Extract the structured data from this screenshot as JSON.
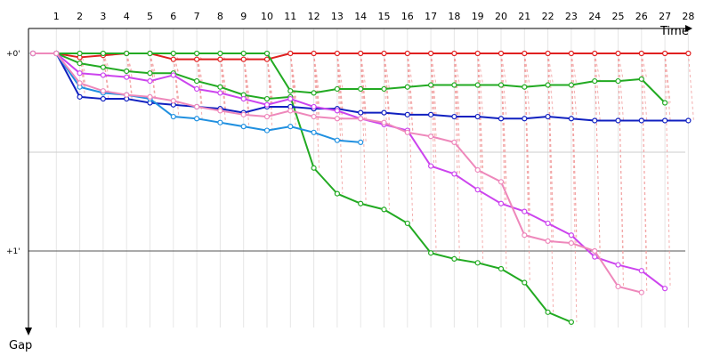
{
  "chart_data": {
    "type": "line",
    "xlabel": "Time",
    "ylabel": "Gap",
    "x_ticks": [
      1,
      2,
      3,
      4,
      5,
      6,
      7,
      8,
      9,
      10,
      11,
      12,
      13,
      14,
      15,
      16,
      17,
      18,
      19,
      20,
      21,
      22,
      23,
      24,
      25,
      26,
      27,
      28
    ],
    "y_ticks": [
      {
        "value": 0,
        "label": "+0'"
      },
      {
        "value": 1,
        "label": "+1'"
      }
    ],
    "ylim": [
      -0.13,
      1.45
    ],
    "xlim": [
      0,
      29.3
    ],
    "grid": true,
    "legend": "none",
    "series": [
      {
        "color": "#e02020",
        "values": [
          0,
          0.0,
          0.02,
          0.01,
          0.0,
          0.0,
          0.03,
          0.03,
          0.03,
          0.03,
          0.03,
          0.0,
          0.0,
          0.0,
          0.0,
          0.0,
          0.0,
          0.0,
          0.0,
          0.0,
          0.0,
          0.0,
          0.0,
          0.0,
          0.0,
          0.0,
          0.0,
          0.0,
          0.0
        ]
      },
      {
        "color": "#22aa22",
        "values": [
          0,
          0.0,
          0.05,
          0.07,
          0.09,
          0.1,
          0.1,
          0.14,
          0.17,
          0.21,
          0.23,
          0.22,
          0.58,
          0.71,
          0.76,
          0.79,
          0.86,
          1.01,
          1.04,
          1.06,
          1.09,
          1.16,
          1.31,
          1.36
        ]
      },
      {
        "color": "#22aa22",
        "values": [
          0,
          0.0,
          0.0,
          0.0,
          0.0,
          0.0,
          0.0,
          0.0,
          0.0,
          0.0,
          0.0,
          0.19,
          0.2,
          0.18,
          0.18,
          0.18,
          0.17,
          0.16,
          0.16,
          0.16,
          0.16,
          0.17,
          0.16,
          0.16,
          0.14,
          0.14,
          0.13,
          0.25
        ]
      },
      {
        "color": "#1020c0",
        "values": [
          0,
          0.0,
          0.22,
          0.23,
          0.23,
          0.25,
          0.26,
          0.27,
          0.28,
          0.3,
          0.27,
          0.27,
          0.28,
          0.28,
          0.3,
          0.3,
          0.31,
          0.31,
          0.32,
          0.32,
          0.33,
          0.33,
          0.32,
          0.33,
          0.34,
          0.34,
          0.34,
          0.34,
          0.34
        ]
      },
      {
        "color": "#2090e0",
        "values": [
          0,
          0.0,
          0.17,
          0.2,
          0.21,
          0.23,
          0.32,
          0.33,
          0.35,
          0.37,
          0.39,
          0.37,
          0.4,
          0.44,
          0.45
        ]
      },
      {
        "color": "#cc44ee",
        "values": [
          0,
          0.0,
          0.1,
          0.11,
          0.12,
          0.14,
          0.11,
          0.18,
          0.2,
          0.23,
          0.26,
          0.23,
          0.27,
          0.29,
          0.33,
          0.36,
          0.39,
          0.57,
          0.61,
          0.69,
          0.76,
          0.8,
          0.86,
          0.92,
          1.03,
          1.07,
          1.1,
          1.19
        ]
      },
      {
        "color": "#ee88bb",
        "values": [
          0,
          0.0,
          0.15,
          0.19,
          0.21,
          0.22,
          0.24,
          0.27,
          0.29,
          0.31,
          0.32,
          0.29,
          0.32,
          0.33,
          0.33,
          0.35,
          0.4,
          0.42,
          0.45,
          0.59,
          0.65,
          0.92,
          0.95,
          0.96,
          1.0,
          1.18,
          1.21
        ]
      }
    ]
  }
}
